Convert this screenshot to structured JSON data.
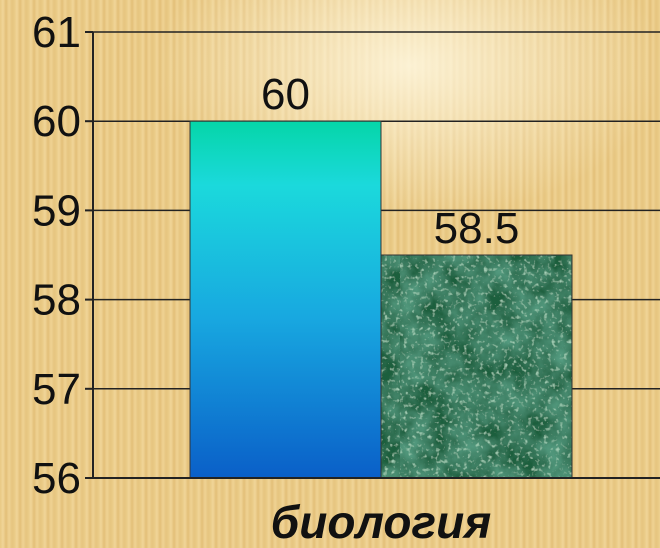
{
  "chart_data": {
    "type": "bar",
    "categories": [
      "биология"
    ],
    "series": [
      {
        "values": [
          60
        ],
        "color": "#1ec8d8"
      },
      {
        "values": [
          58.5
        ],
        "color": "#1f6b45"
      }
    ],
    "data_labels": [
      "60",
      "58.5"
    ],
    "ylim": [
      56,
      61
    ],
    "yticks": [
      "56",
      "57",
      "58",
      "59",
      "60",
      "61"
    ],
    "grid": true,
    "title": "",
    "xlabel": "",
    "ylabel": ""
  }
}
